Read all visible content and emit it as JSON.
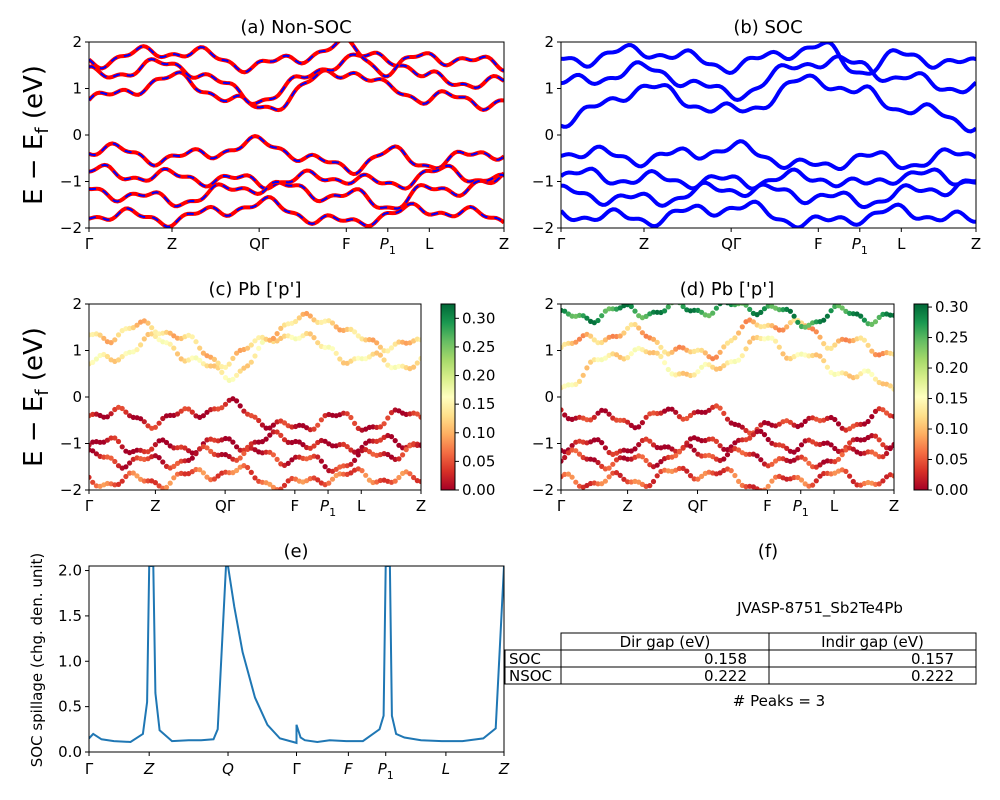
{
  "figure": {
    "material_id": "JVASP-8751_Sb2Te4Pb",
    "peaks_label": "# Peaks = 3"
  },
  "kpath": {
    "labels": [
      "Γ",
      "Z",
      "QΓ",
      "F",
      "P1",
      "L",
      "Z"
    ],
    "spillage_labels": [
      "Γ",
      "Z",
      "Q",
      "Γ",
      "F",
      "P1",
      "L",
      "Z"
    ]
  },
  "colors": {
    "nsoc_red": "#ff0000",
    "nsoc_blue": "#0000ff",
    "soc_blue": "#0000ff",
    "spillage_line": "#1f77b4",
    "cmap": [
      "#a50026",
      "#d73027",
      "#f46d43",
      "#fdae61",
      "#fee08b",
      "#ffffbf",
      "#d9ef8b",
      "#a6d96a",
      "#66bd63",
      "#1a9850",
      "#006837"
    ]
  },
  "chart_data": [
    {
      "panel": "a",
      "type": "line",
      "title": "(a) Non-SOC",
      "ylabel": "E − E_f (eV)",
      "ylim": [
        -2,
        2
      ],
      "yticks": [
        "−2",
        "−1",
        "0",
        "1",
        "2"
      ],
      "style": "red solid overlaid with blue dashed",
      "x": [
        0,
        0.2,
        0.41,
        0.62,
        0.72,
        0.82,
        1
      ],
      "bands": [
        [
          0.75,
          1.2,
          0.6,
          1.4,
          1.0,
          0.8,
          0.7
        ],
        [
          1.3,
          1.5,
          0.8,
          1.6,
          1.7,
          1.2,
          1.1
        ],
        [
          1.6,
          1.8,
          1.5,
          1.9,
          1.4,
          1.7,
          1.5
        ],
        [
          -0.3,
          -0.5,
          -0.2,
          -0.7,
          -0.4,
          -0.6,
          -0.35
        ],
        [
          -0.8,
          -0.9,
          -1.0,
          -0.9,
          -1.1,
          -0.8,
          -0.95
        ],
        [
          -1.2,
          -1.4,
          -1.1,
          -1.3,
          -1.5,
          -1.2,
          -1.0
        ],
        [
          -1.7,
          -1.8,
          -1.5,
          -1.9,
          -1.7,
          -1.6,
          -1.8
        ]
      ]
    },
    {
      "panel": "b",
      "type": "line",
      "title": "(b) SOC",
      "ylim": [
        -2,
        2
      ],
      "yticks": [
        "−2",
        "−1",
        "0",
        "1",
        "2"
      ],
      "style": "blue solid",
      "x": [
        0,
        0.2,
        0.41,
        0.62,
        0.72,
        0.82,
        1
      ],
      "bands": [
        [
          0.3,
          1.0,
          0.5,
          1.2,
          0.9,
          0.6,
          0.25
        ],
        [
          1.1,
          1.4,
          0.9,
          1.6,
          1.5,
          1.2,
          1.0
        ],
        [
          1.6,
          1.8,
          1.5,
          1.9,
          1.4,
          1.7,
          1.5
        ],
        [
          -0.35,
          -0.5,
          -0.3,
          -0.7,
          -0.45,
          -0.6,
          -0.4
        ],
        [
          -0.85,
          -0.95,
          -1.0,
          -0.9,
          -1.1,
          -0.85,
          -0.95
        ],
        [
          -1.25,
          -1.4,
          -1.15,
          -1.3,
          -1.45,
          -1.25,
          -1.05
        ],
        [
          -1.7,
          -1.8,
          -1.55,
          -1.9,
          -1.75,
          -1.65,
          -1.85
        ]
      ]
    },
    {
      "panel": "c",
      "type": "scatter",
      "title": "(c)  Pb ['p']",
      "ylabel": "E − E_f (eV)",
      "ylim": [
        -2,
        2
      ],
      "yticks": [
        "−2",
        "−1",
        "0",
        "1",
        "2"
      ],
      "colorbar": {
        "min": 0.0,
        "max": 0.325,
        "ticks": [
          "0.00",
          "0.05",
          "0.10",
          "0.15",
          "0.20",
          "0.25",
          "0.30"
        ],
        "tick_values": [
          0,
          0.05,
          0.1,
          0.15,
          0.2,
          0.25,
          0.3
        ]
      },
      "x": [
        0,
        0.2,
        0.41,
        0.62,
        0.72,
        0.82,
        1
      ],
      "bands": [
        [
          0.7,
          1.2,
          0.5,
          1.4,
          1.0,
          0.8,
          0.7
        ],
        [
          1.3,
          1.5,
          0.8,
          1.6,
          1.7,
          1.2,
          1.1
        ],
        [
          -0.3,
          -0.5,
          -0.2,
          -0.7,
          -0.4,
          -0.6,
          -0.35
        ],
        [
          -1.0,
          -1.1,
          -1.0,
          -0.9,
          -1.1,
          -1.0,
          -0.95
        ],
        [
          -1.3,
          -1.4,
          -1.2,
          -1.3,
          -1.5,
          -1.3,
          -1.1
        ],
        [
          -1.8,
          -1.8,
          -1.6,
          -1.9,
          -1.7,
          -1.7,
          -1.8
        ]
      ],
      "band_weights": [
        0.14,
        0.12,
        0.02,
        0.01,
        0.03,
        0.06
      ]
    },
    {
      "panel": "d",
      "type": "scatter",
      "title": "(d) Pb ['p']",
      "ylim": [
        -2,
        2
      ],
      "yticks": [
        "−2",
        "−1",
        "0",
        "1",
        "2"
      ],
      "colorbar": {
        "min": 0.0,
        "max": 0.305,
        "ticks": [
          "0.00",
          "0.05",
          "0.10",
          "0.15",
          "0.20",
          "0.25",
          "0.30"
        ],
        "tick_values": [
          0,
          0.05,
          0.1,
          0.15,
          0.2,
          0.25,
          0.3
        ]
      },
      "x": [
        0,
        0.2,
        0.41,
        0.62,
        0.72,
        0.82,
        1
      ],
      "bands": [
        [
          0.3,
          1.0,
          0.5,
          1.2,
          0.9,
          0.6,
          0.25
        ],
        [
          1.1,
          1.4,
          0.9,
          1.6,
          1.5,
          1.2,
          1.0
        ],
        [
          1.7,
          1.85,
          1.9,
          1.95,
          1.6,
          1.8,
          1.7
        ],
        [
          -0.35,
          -0.5,
          -0.3,
          -0.7,
          -0.45,
          -0.6,
          -0.4
        ],
        [
          -1.0,
          -1.1,
          -1.0,
          -0.9,
          -1.1,
          -1.0,
          -0.95
        ],
        [
          -1.3,
          -1.4,
          -1.2,
          -1.3,
          -1.45,
          -1.3,
          -1.1
        ],
        [
          -1.8,
          -1.8,
          -1.6,
          -1.9,
          -1.75,
          -1.7,
          -1.85
        ]
      ],
      "band_weights": [
        0.13,
        0.1,
        0.27,
        0.02,
        0.01,
        0.03,
        0.05
      ]
    },
    {
      "panel": "e",
      "type": "line",
      "title": "(e)",
      "ylabel": "SOC spillage (chg. den. unit)",
      "ylim": [
        0,
        2.05
      ],
      "yticks": [
        "0.0",
        "0.5",
        "1.0",
        "1.5",
        "2.0"
      ],
      "ytick_values": [
        0,
        0.5,
        1.0,
        1.5,
        2.0
      ],
      "x": [
        0,
        0.01,
        0.03,
        0.06,
        0.1,
        0.13,
        0.14,
        0.145,
        0.15,
        0.155,
        0.16,
        0.17,
        0.2,
        0.24,
        0.27,
        0.3,
        0.31,
        0.33,
        0.335,
        0.34,
        0.35,
        0.37,
        0.4,
        0.43,
        0.46,
        0.5,
        0.5,
        0.51,
        0.52,
        0.55,
        0.58,
        0.62,
        0.66,
        0.7,
        0.71,
        0.715,
        0.72,
        0.725,
        0.73,
        0.74,
        0.76,
        0.8,
        0.85,
        0.9,
        0.95,
        0.98,
        1
      ],
      "y": [
        0.15,
        0.2,
        0.14,
        0.12,
        0.11,
        0.2,
        0.55,
        2.05,
        2.05,
        2.05,
        0.65,
        0.24,
        0.12,
        0.13,
        0.13,
        0.14,
        0.25,
        2.05,
        2.05,
        1.9,
        1.6,
        1.1,
        0.6,
        0.3,
        0.15,
        0.1,
        0.3,
        0.16,
        0.13,
        0.11,
        0.13,
        0.12,
        0.12,
        0.25,
        0.4,
        2.05,
        2.05,
        2.05,
        0.4,
        0.2,
        0.16,
        0.13,
        0.12,
        0.12,
        0.15,
        0.26,
        2.05
      ]
    },
    {
      "panel": "f",
      "type": "table",
      "title": "(f)",
      "columns": [
        "",
        "Dir gap (eV)",
        "Indir gap (eV)"
      ],
      "rows": [
        [
          "SOC",
          "0.158",
          "0.157"
        ],
        [
          "NSOC",
          "0.222",
          "0.222"
        ]
      ]
    }
  ]
}
